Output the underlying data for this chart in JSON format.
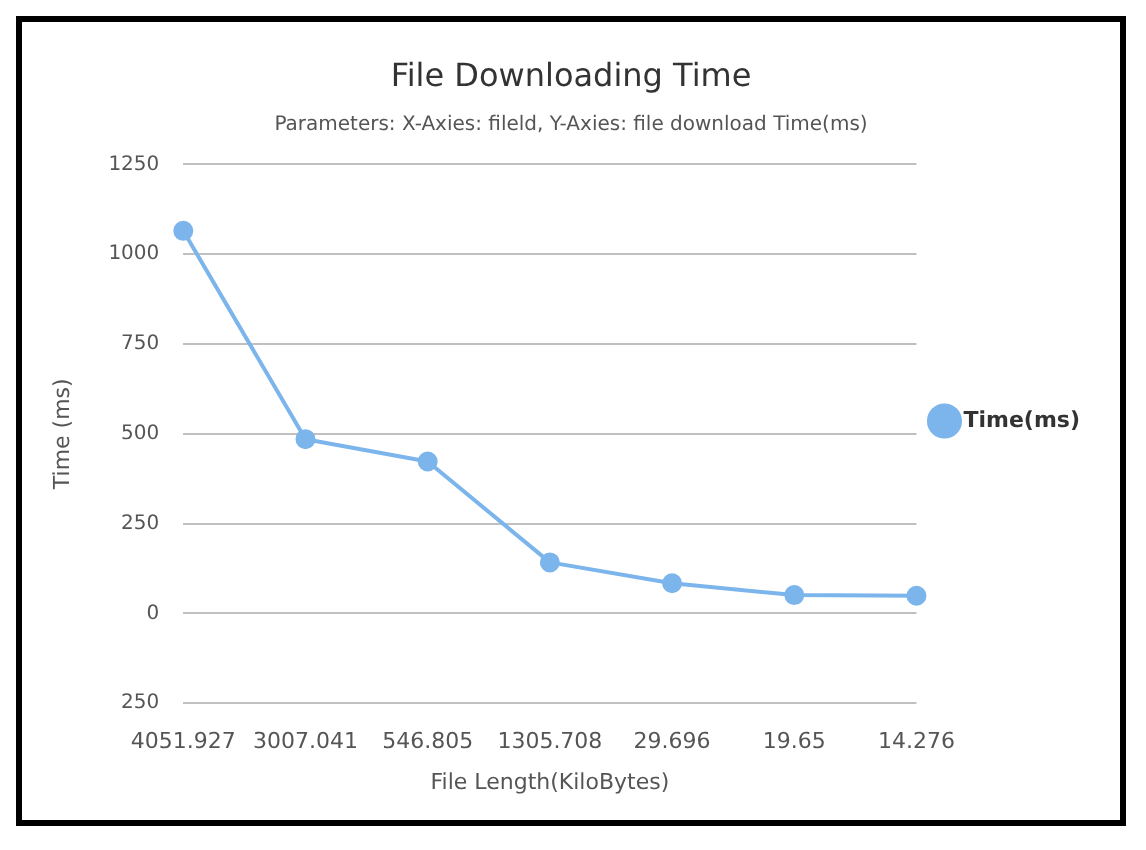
{
  "chart_data": {
    "type": "line",
    "title": "File Downloading Time",
    "subtitle": "Parameters: X-Axies: fileld, Y-Axies: file download Time(ms)",
    "xlabel": "File Length(KiloBytes)",
    "ylabel": "Time (ms)",
    "categories": [
      "4051.927",
      "3007.041",
      "546.805",
      "1305.708",
      "29.696",
      "19.65",
      "14.276"
    ],
    "series": [
      {
        "name": "Time(ms)",
        "color": "#7cb5ec",
        "values": [
          1065,
          485,
          423,
          142,
          84,
          51,
          49
        ]
      }
    ],
    "ylim": [
      -250,
      1250
    ],
    "yticks": [
      {
        "value": -250,
        "label": "250"
      },
      0,
      250,
      500,
      750,
      1000,
      1250
    ],
    "grid": "y",
    "legend": "right",
    "marker": "circle",
    "line_style": "solid"
  }
}
